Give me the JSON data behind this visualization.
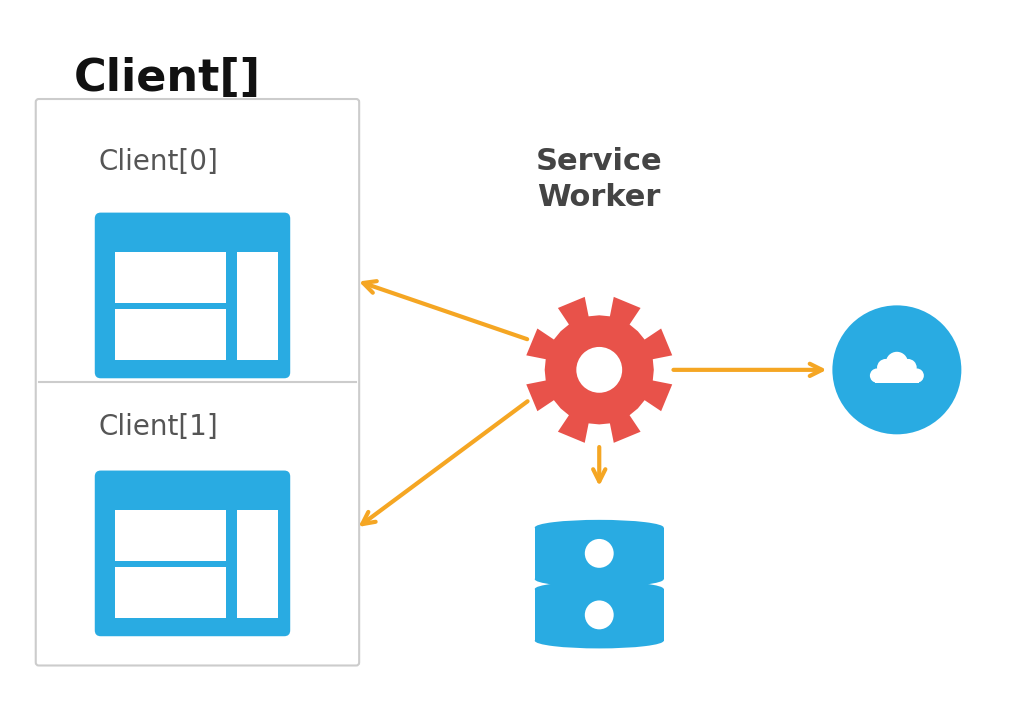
{
  "bg_color": "#ffffff",
  "title_text": "Client[]",
  "title_color": "#111111",
  "title_fontsize": 32,
  "title_fontweight": "bold",
  "outer_box_color": "#cccccc",
  "client_label_fontsize": 20,
  "client_label_color": "#555555",
  "browser_blue": "#29ABE2",
  "sw_label": "Service\nWorker",
  "sw_label_fontsize": 22,
  "sw_label_color": "#444444",
  "gear_color": "#E8524A",
  "arrow_color": "#F5A623",
  "arrow_lw": 3.0,
  "cloud_color": "#29ABE2",
  "db_color": "#29ABE2"
}
